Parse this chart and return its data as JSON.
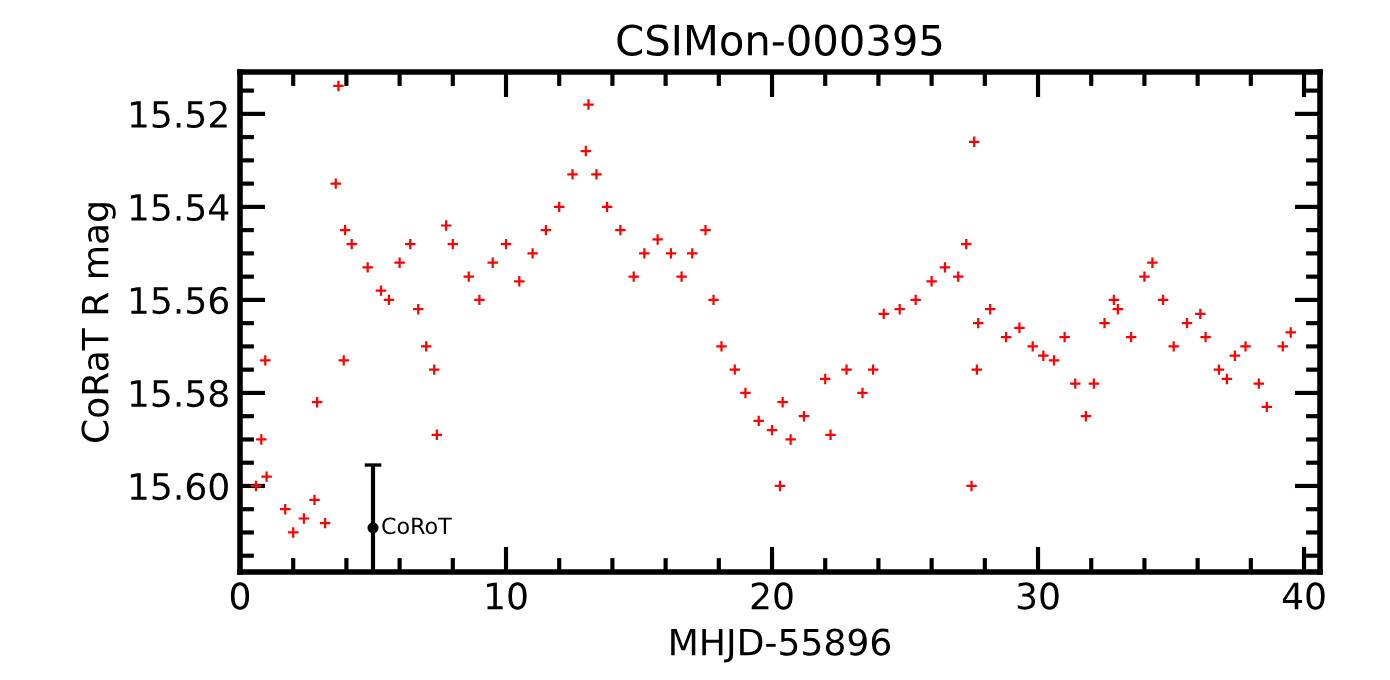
{
  "chart_data": {
    "type": "scatter",
    "title": "CSIMon-000395",
    "xlabel": "MHJD-55896",
    "ylabel": "CoRaT R mag",
    "xlim": [
      0,
      40.6
    ],
    "ylim": [
      15.6185,
      15.511
    ],
    "xticks": [
      0,
      {
        "value": 2,
        "label": null
      },
      {
        "value": 4,
        "label": null
      },
      {
        "value": 6,
        "label": null
      },
      {
        "value": 8,
        "label": null
      },
      10,
      {
        "value": 12,
        "label": null
      },
      {
        "value": 14,
        "label": null
      },
      {
        "value": 16,
        "label": null
      },
      {
        "value": 18,
        "label": null
      },
      20,
      {
        "value": 22,
        "label": null
      },
      {
        "value": 24,
        "label": null
      },
      {
        "value": 26,
        "label": null
      },
      {
        "value": 28,
        "label": null
      },
      30,
      {
        "value": 32,
        "label": null
      },
      {
        "value": 34,
        "label": null
      },
      {
        "value": 36,
        "label": null
      },
      {
        "value": 38,
        "label": null
      },
      40
    ],
    "yticks": [
      {
        "value": 15.515,
        "label": null
      },
      {
        "value": 15.52,
        "label": "15.52"
      },
      {
        "value": 15.525,
        "label": null
      },
      {
        "value": 15.53,
        "label": null
      },
      {
        "value": 15.535,
        "label": null
      },
      {
        "value": 15.54,
        "label": "15.54"
      },
      {
        "value": 15.545,
        "label": null
      },
      {
        "value": 15.55,
        "label": null
      },
      {
        "value": 15.555,
        "label": null
      },
      {
        "value": 15.56,
        "label": "15.56"
      },
      {
        "value": 15.565,
        "label": null
      },
      {
        "value": 15.57,
        "label": null
      },
      {
        "value": 15.575,
        "label": null
      },
      {
        "value": 15.58,
        "label": "15.58"
      },
      {
        "value": 15.585,
        "label": null
      },
      {
        "value": 15.59,
        "label": null
      },
      {
        "value": 15.595,
        "label": null
      },
      {
        "value": 15.6,
        "label": "15.60"
      },
      {
        "value": 15.605,
        "label": null
      },
      {
        "value": 15.61,
        "label": null
      },
      {
        "value": 15.615,
        "label": null
      }
    ],
    "grid": false,
    "marker": "cross",
    "series": [
      {
        "color": "#ff0000",
        "x": [
          0.6,
          0.8,
          0.95,
          1.0,
          1.7,
          2.0,
          2.4,
          2.8,
          2.9,
          3.2,
          3.6,
          3.7,
          3.9,
          3.95,
          4.2,
          4.8,
          5.3,
          5.6,
          6.0,
          6.4,
          6.7,
          7.0,
          7.3,
          7.4,
          7.75,
          8.0,
          8.6,
          9.0,
          9.5,
          10.0,
          10.5,
          11.0,
          11.5,
          12.0,
          12.5,
          13.0,
          13.1,
          13.4,
          13.8,
          14.3,
          14.8,
          15.2,
          15.7,
          16.2,
          16.6,
          17.0,
          17.5,
          17.8,
          18.1,
          18.6,
          19.0,
          19.5,
          20.0,
          20.3,
          20.4,
          20.7,
          21.2,
          22.0,
          22.2,
          22.8,
          23.4,
          23.8,
          24.2,
          24.8,
          25.4,
          26.0,
          26.5,
          27.0,
          27.3,
          27.5,
          27.6,
          27.7,
          27.75,
          28.2,
          28.8,
          29.3,
          29.8,
          30.2,
          30.6,
          31.0,
          31.4,
          31.8,
          32.1,
          32.5,
          32.85,
          33.0,
          33.5,
          34.0,
          34.3,
          34.7,
          35.1,
          35.6,
          36.1,
          36.3,
          36.8,
          37.1,
          37.4,
          37.8,
          38.3,
          38.6,
          39.2,
          39.5
        ],
        "values": [
          15.6,
          15.59,
          15.573,
          15.598,
          15.605,
          15.61,
          15.607,
          15.603,
          15.582,
          15.608,
          15.535,
          15.514,
          15.573,
          15.545,
          15.548,
          15.553,
          15.558,
          15.56,
          15.552,
          15.548,
          15.562,
          15.57,
          15.575,
          15.589,
          15.544,
          15.548,
          15.555,
          15.56,
          15.552,
          15.548,
          15.556,
          15.55,
          15.545,
          15.54,
          15.533,
          15.528,
          15.518,
          15.533,
          15.54,
          15.545,
          15.555,
          15.55,
          15.547,
          15.55,
          15.555,
          15.55,
          15.545,
          15.56,
          15.57,
          15.575,
          15.58,
          15.586,
          15.588,
          15.6,
          15.582,
          15.59,
          15.585,
          15.577,
          15.589,
          15.575,
          15.58,
          15.575,
          15.563,
          15.562,
          15.56,
          15.556,
          15.553,
          15.555,
          15.548,
          15.6,
          15.526,
          15.575,
          15.565,
          15.562,
          15.568,
          15.566,
          15.57,
          15.572,
          15.573,
          15.568,
          15.578,
          15.585,
          15.578,
          15.565,
          15.56,
          15.562,
          15.568,
          15.555,
          15.552,
          15.56,
          15.57,
          15.565,
          15.563,
          15.568,
          15.575,
          15.577,
          15.572,
          15.57,
          15.578,
          15.583,
          15.57,
          15.567
        ]
      },
      {
        "color": "#000000",
        "marker": "circle",
        "x": [
          5.0
        ],
        "values": [
          15.609
        ],
        "errors": [
          [
            15.5955,
            15.6185
          ]
        ]
      }
    ],
    "annotations": [
      {
        "text": "CoRoT",
        "x": 5.3,
        "y": 15.609
      }
    ]
  }
}
